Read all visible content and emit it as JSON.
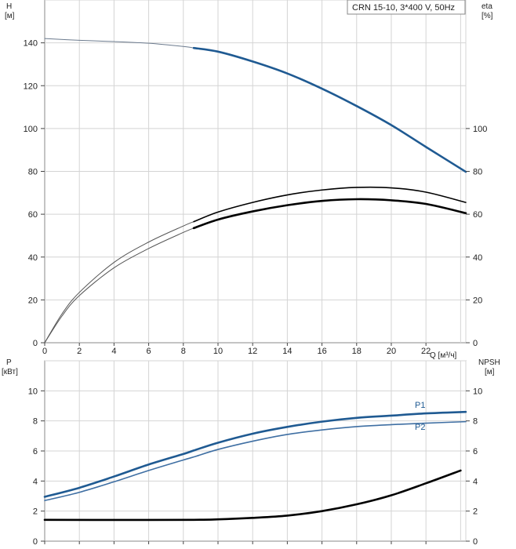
{
  "chart_data": [
    {
      "type": "line",
      "title_box": "CRN 15-10, 3*400 V, 50Hz",
      "x_label": "Q [м³/ч]",
      "xlim": [
        0,
        24.3
      ],
      "x_ticks": [
        0,
        2,
        4,
        6,
        8,
        10,
        12,
        14,
        16,
        18,
        20,
        22
      ],
      "left_axis": {
        "label_line1": "H",
        "label_line2": "[м]",
        "ylim": [
          0,
          160
        ],
        "ticks": [
          0,
          20,
          40,
          60,
          80,
          100,
          120,
          140
        ]
      },
      "right_axis": {
        "label_line1": "eta",
        "label_line2": "[%]",
        "ylim": [
          0,
          160
        ],
        "ticks": [
          0,
          20,
          40,
          60,
          80,
          100
        ]
      },
      "grid": true,
      "series": [
        {
          "axis": "left",
          "color": "#6c7b8e",
          "style": "thin",
          "points": [
            [
              0,
              142.0
            ],
            [
              2,
              141.2
            ],
            [
              4,
              140.6
            ],
            [
              6,
              139.8
            ],
            [
              8,
              138.3
            ],
            [
              8.6,
              137.6
            ]
          ]
        },
        {
          "axis": "left",
          "color": "#1f5a92",
          "style": "thick",
          "points": [
            [
              8.6,
              137.6
            ],
            [
              10,
              135.9
            ],
            [
              12,
              131.3
            ],
            [
              14,
              125.7
            ],
            [
              16,
              118.6
            ],
            [
              18,
              110.5
            ],
            [
              20,
              101.6
            ],
            [
              22,
              91.4
            ],
            [
              24.3,
              79.8
            ]
          ]
        },
        {
          "axis": "right",
          "color": "#555555",
          "style": "thin",
          "points": [
            [
              0,
              0
            ],
            [
              1,
              13.5
            ],
            [
              2,
              23.5
            ],
            [
              4,
              37.5
            ],
            [
              6,
              47.0
            ],
            [
              8,
              54.5
            ],
            [
              8.6,
              56.5
            ]
          ]
        },
        {
          "axis": "right",
          "color": "#000000",
          "style": "medium",
          "points": [
            [
              8.6,
              56.5
            ],
            [
              10,
              61.0
            ],
            [
              12,
              65.5
            ],
            [
              14,
              69.0
            ],
            [
              16,
              71.3
            ],
            [
              18,
              72.5
            ],
            [
              20,
              72.3
            ],
            [
              22,
              70.3
            ],
            [
              24.3,
              65.5
            ]
          ]
        },
        {
          "axis": "right",
          "color": "#555555",
          "style": "thin",
          "points": [
            [
              0,
              0
            ],
            [
              1,
              12.5
            ],
            [
              2,
              22.0
            ],
            [
              4,
              35.0
            ],
            [
              6,
              44.0
            ],
            [
              8,
              51.5
            ],
            [
              8.6,
              53.5
            ]
          ]
        },
        {
          "axis": "right",
          "color": "#000000",
          "style": "thick",
          "points": [
            [
              8.6,
              53.5
            ],
            [
              10,
              57.5
            ],
            [
              12,
              61.3
            ],
            [
              14,
              64.2
            ],
            [
              16,
              66.2
            ],
            [
              18,
              67.0
            ],
            [
              20,
              66.5
            ],
            [
              22,
              64.8
            ],
            [
              24.3,
              60.5
            ]
          ]
        }
      ]
    },
    {
      "type": "line",
      "xlim": [
        0,
        24.3
      ],
      "left_axis": {
        "label_line1": "P",
        "label_line2": "[кВт]",
        "ylim": [
          0,
          12
        ],
        "ticks": [
          0,
          2,
          4,
          6,
          8,
          10
        ]
      },
      "right_axis": {
        "label_line1": "NPSH",
        "label_line2": "[м]",
        "ylim": [
          0,
          12
        ],
        "ticks": [
          0,
          2,
          4,
          6,
          8,
          10
        ]
      },
      "grid": true,
      "series": [
        {
          "name": "P1",
          "axis": "left",
          "color": "#1f5a92",
          "style": "thick",
          "points": [
            [
              0,
              2.95
            ],
            [
              2,
              3.55
            ],
            [
              4,
              4.3
            ],
            [
              6,
              5.1
            ],
            [
              8,
              5.8
            ],
            [
              8.6,
              6.03
            ],
            [
              10,
              6.55
            ],
            [
              12,
              7.15
            ],
            [
              14,
              7.6
            ],
            [
              16,
              7.95
            ],
            [
              18,
              8.2
            ],
            [
              20,
              8.35
            ],
            [
              22,
              8.5
            ],
            [
              24.3,
              8.6
            ]
          ]
        },
        {
          "name": "P2",
          "axis": "left",
          "color": "#3f6fa3",
          "style": "medium",
          "points": [
            [
              0,
              2.7
            ],
            [
              2,
              3.25
            ],
            [
              4,
              3.95
            ],
            [
              6,
              4.7
            ],
            [
              8,
              5.4
            ],
            [
              8.6,
              5.6
            ],
            [
              10,
              6.1
            ],
            [
              12,
              6.65
            ],
            [
              14,
              7.1
            ],
            [
              16,
              7.4
            ],
            [
              18,
              7.62
            ],
            [
              20,
              7.75
            ],
            [
              22,
              7.85
            ],
            [
              24.3,
              7.95
            ]
          ]
        },
        {
          "axis": "right",
          "color": "#000000",
          "style": "thick",
          "points": [
            [
              0,
              1.42
            ],
            [
              4,
              1.41
            ],
            [
              8.6,
              1.42
            ],
            [
              10,
              1.45
            ],
            [
              12,
              1.55
            ],
            [
              14,
              1.7
            ],
            [
              16,
              2.0
            ],
            [
              18,
              2.45
            ],
            [
              20,
              3.05
            ],
            [
              22,
              3.85
            ],
            [
              24.0,
              4.7
            ]
          ]
        }
      ]
    }
  ]
}
